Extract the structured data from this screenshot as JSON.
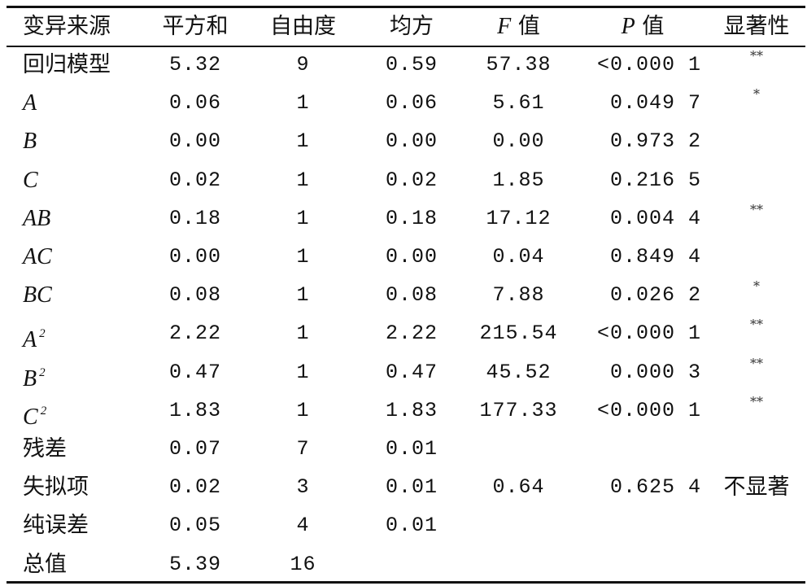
{
  "table": {
    "header": [
      "变异来源",
      "平方和",
      "自由度",
      "均方",
      {
        "var": "F",
        "text": "值"
      },
      {
        "var": "P",
        "text": "值"
      },
      "显著性"
    ],
    "rows": [
      [
        "回归模型",
        "5.32",
        "9",
        "0.59",
        "57.38",
        "<0.000 1",
        "**"
      ],
      [
        "A",
        "0.06",
        "1",
        "0.06",
        "5.61",
        "0.049 7",
        "*"
      ],
      [
        "B",
        "0.00",
        "1",
        "0.00",
        "0.00",
        "0.973 2"
      ],
      [
        "C",
        "0.02",
        "1",
        "0.02",
        "1.85",
        "0.216 5"
      ],
      [
        "AB",
        "0.18",
        "1",
        "0.18",
        "17.12",
        "0.004 4",
        "**"
      ],
      [
        "AC",
        "0.00",
        "1",
        "0.00",
        "0.04",
        "0.849 4"
      ],
      [
        "BC",
        "0.08",
        "1",
        "0.08",
        "7.88",
        "0.026 2",
        "*"
      ],
      [
        {
          "base": "A",
          "sup": "2"
        },
        "2.22",
        "1",
        "2.22",
        "215.54",
        "<0.000 1",
        "**"
      ],
      [
        {
          "base": "B",
          "sup": "2"
        },
        "0.47",
        "1",
        "0.47",
        "45.52",
        "0.000 3",
        "**"
      ],
      [
        {
          "base": "C",
          "sup": "2"
        },
        "1.83",
        "1",
        "1.83",
        "177.33",
        "<0.000 1",
        "**"
      ],
      [
        "残差",
        "0.07",
        "7",
        "0.01"
      ],
      [
        "失拟项",
        "0.02",
        "3",
        "0.01",
        "0.64",
        "0.625 4",
        "不显著"
      ],
      [
        "纯误差",
        "0.05",
        "4",
        "0.01"
      ],
      [
        "总值",
        "5.39",
        "16"
      ]
    ]
  }
}
